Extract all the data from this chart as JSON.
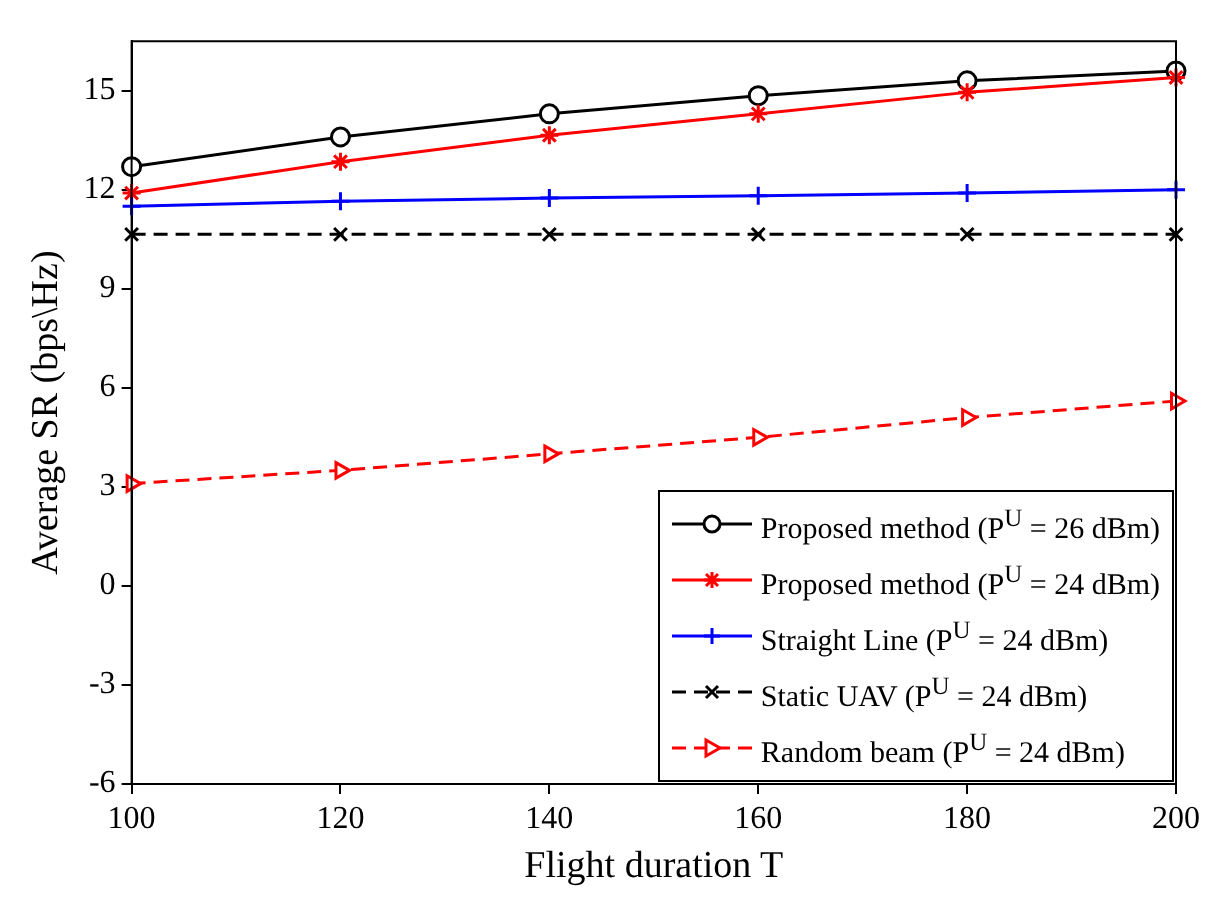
{
  "chart_data": {
    "type": "line",
    "xlabel": "Flight duration T",
    "ylabel": "Average SR (bps\\Hz)",
    "x": [
      100,
      120,
      140,
      160,
      180,
      200
    ],
    "xlim": [
      100,
      200
    ],
    "xticks": [
      100,
      120,
      140,
      160,
      180,
      200
    ],
    "ylim": [
      -6,
      16.5
    ],
    "yticks": [
      -6,
      -3,
      0,
      3,
      6,
      9,
      12,
      15
    ],
    "grid": false,
    "legend": "bottom right",
    "series": [
      {
        "name": "Proposed method (P$^{U}$ = 26 dBm)",
        "color": "#000000",
        "marker": "circle",
        "line_style": "solid",
        "values": [
          12.7,
          13.6,
          14.3,
          14.85,
          15.3,
          15.6
        ]
      },
      {
        "name": "Proposed method (P$^{U}$ = 24 dBm)",
        "color": "#ff0000",
        "marker": "cross",
        "line_style": "solid",
        "values": [
          11.9,
          12.85,
          13.65,
          14.3,
          14.95,
          15.4
        ]
      },
      {
        "name": "Straight Line (P$^{U}$ = 24 dBm)",
        "color": "#0000ff",
        "marker": "plus",
        "line_style": "solid",
        "values": [
          11.5,
          11.65,
          11.75,
          11.82,
          11.9,
          12.0
        ]
      },
      {
        "name": "Static UAV (P$^{U}$ = 24 dBm)",
        "color": "#000000",
        "marker": "x",
        "line_style": "dashed",
        "values": [
          10.65,
          10.65,
          10.65,
          10.65,
          10.65,
          10.65
        ]
      },
      {
        "name": "Random beam (P$^{U}$ = 24 dBm)",
        "color": "#ff0000",
        "marker": "triangle",
        "line_style": "dashed",
        "values": [
          3.1,
          3.5,
          4.0,
          4.5,
          5.1,
          5.6
        ]
      }
    ]
  }
}
